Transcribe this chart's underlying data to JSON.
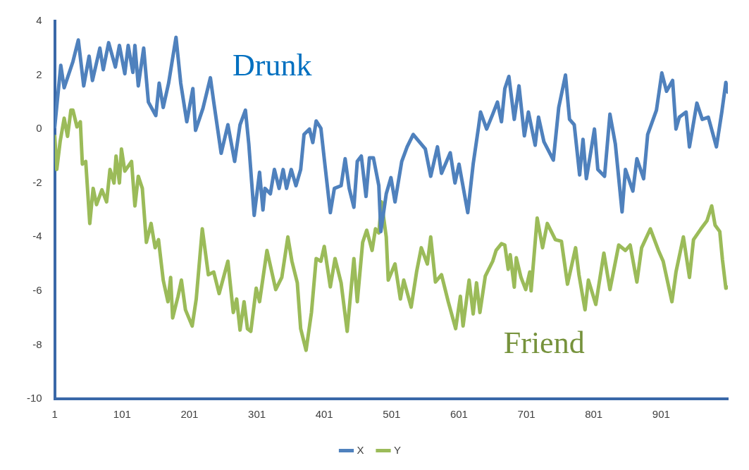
{
  "chart_data": {
    "type": "line",
    "xlim": [
      1,
      1000
    ],
    "xticks": [
      1,
      101,
      201,
      301,
      401,
      501,
      601,
      701,
      801,
      901
    ],
    "ylim": [
      -10,
      4
    ],
    "yticks": [
      -10,
      -8,
      -6,
      -4,
      -2,
      0,
      2,
      4
    ],
    "grid": false,
    "legend": "bottom",
    "marker": "none",
    "line_style": "solid",
    "annotations": [
      "Drunk",
      "Friend"
    ],
    "series": [
      {
        "name": "X",
        "color": "#4f81bd",
        "x": [
          1,
          10,
          15,
          28,
          36,
          44,
          52,
          57,
          68,
          73,
          81,
          91,
          97,
          105,
          110,
          117,
          120,
          125,
          133,
          140,
          151,
          156,
          162,
          170,
          181,
          188,
          197,
          206,
          210,
          221,
          232,
          237,
          248,
          258,
          268,
          276,
          284,
          289,
          297,
          305,
          310,
          313,
          321,
          327,
          334,
          340,
          345,
          352,
          359,
          366,
          371,
          379,
          384,
          389,
          396,
          401,
          410,
          416,
          426,
          432,
          438,
          445,
          450,
          456,
          463,
          468,
          474,
          482,
          485,
          493,
          500,
          506,
          516,
          524,
          533,
          542,
          551,
          559,
          569,
          575,
          588,
          595,
          601,
          614,
          622,
          630,
          633,
          642,
          651,
          658,
          664,
          669,
          675,
          683,
          690,
          698,
          704,
          714,
          719,
          727,
          741,
          749,
          759,
          765,
          772,
          780,
          785,
          790,
          796,
          802,
          807,
          817,
          825,
          833,
          843,
          848,
          859,
          865,
          875,
          881,
          894,
          902,
          909,
          918,
          923,
          928,
          938,
          943,
          954,
          962,
          971,
          983,
          991,
          997,
          1000
        ],
        "values": [
          0.08,
          2.36,
          1.53,
          2.5,
          3.3,
          1.6,
          2.7,
          1.8,
          3.0,
          2.2,
          3.2,
          2.3,
          3.1,
          2.05,
          3.1,
          2.1,
          3.1,
          1.6,
          3.0,
          1.0,
          0.5,
          1.7,
          0.8,
          1.7,
          3.4,
          1.7,
          0.27,
          1.5,
          -0.05,
          0.77,
          1.9,
          1.0,
          -0.9,
          0.16,
          -1.2,
          0.16,
          0.7,
          -0.55,
          -3.2,
          -1.6,
          -3.0,
          -2.2,
          -2.4,
          -1.5,
          -2.2,
          -1.5,
          -2.2,
          -1.5,
          -2.1,
          -1.5,
          -0.2,
          0,
          -0.5,
          0.3,
          0.03,
          -1.1,
          -3.1,
          -2.2,
          -2.1,
          -1.1,
          -2.2,
          -2.9,
          -1.2,
          -1.0,
          -2.5,
          -1.07,
          -1.07,
          -2.1,
          -3.8,
          -2.4,
          -1.8,
          -2.7,
          -1.2,
          -0.66,
          -0.2,
          -0.47,
          -0.74,
          -1.75,
          -0.66,
          -1.64,
          -0.88,
          -2.0,
          -1.3,
          -3.1,
          -1.3,
          0.08,
          0.63,
          0,
          0.55,
          1.0,
          0.27,
          1.5,
          1.95,
          0.36,
          1.6,
          -0.25,
          0.63,
          -0.6,
          0.44,
          -0.47,
          -1.15,
          0.8,
          2.0,
          0.36,
          0.16,
          -1.7,
          -0.38,
          -1.84,
          -0.93,
          0,
          -1.5,
          -1.75,
          0.55,
          -0.55,
          -3.07,
          -1.5,
          -2.3,
          -1.1,
          -1.84,
          -0.2,
          0.7,
          2.08,
          1.4,
          1.8,
          0,
          0.44,
          0.63,
          -0.66,
          0.96,
          0.36,
          0.44,
          -0.66,
          0.63,
          1.73,
          1.37
        ]
      },
      {
        "name": "Y",
        "color": "#9bbb59",
        "x": [
          1,
          4,
          9,
          15,
          20,
          25,
          28,
          34,
          39,
          42,
          47,
          53,
          58,
          63,
          71,
          78,
          83,
          89,
          92,
          97,
          100,
          105,
          115,
          120,
          125,
          131,
          137,
          144,
          150,
          155,
          162,
          169,
          173,
          176,
          184,
          189,
          195,
          205,
          211,
          220,
          229,
          237,
          245,
          258,
          266,
          271,
          276,
          282,
          287,
          292,
          300,
          305,
          316,
          329,
          338,
          347,
          353,
          361,
          366,
          374,
          382,
          389,
          396,
          401,
          410,
          417,
          426,
          435,
          445,
          450,
          458,
          464,
          472,
          477,
          482,
          486,
          493,
          496,
          506,
          514,
          519,
          530,
          538,
          545,
          554,
          559,
          566,
          575,
          585,
          596,
          603,
          607,
          616,
          622,
          627,
          632,
          640,
          651,
          656,
          664,
          669,
          674,
          677,
          683,
          686,
          693,
          700,
          706,
          708,
          717,
          725,
          732,
          744,
          753,
          762,
          774,
          779,
          788,
          793,
          804,
          816,
          825,
          838,
          848,
          855,
          865,
          872,
          885,
          897,
          904,
          917,
          923,
          934,
          943,
          949,
          960,
          969,
          976,
          981,
          988,
          992,
          997,
          1000
        ],
        "values": [
          -0.27,
          -1.5,
          -0.47,
          0.4,
          -0.27,
          0.7,
          0.7,
          0.08,
          0.27,
          -1.3,
          -1.2,
          -3.5,
          -2.2,
          -2.8,
          -2.25,
          -2.7,
          -1.5,
          -2.0,
          -1.0,
          -2.0,
          -0.74,
          -1.56,
          -1.2,
          -2.85,
          -1.75,
          -2.2,
          -4.2,
          -3.5,
          -4.4,
          -4.1,
          -5.6,
          -6.4,
          -5.5,
          -7.0,
          -6.2,
          -5.6,
          -6.7,
          -7.3,
          -6.3,
          -3.7,
          -5.4,
          -5.3,
          -6.1,
          -4.9,
          -6.8,
          -6.3,
          -7.45,
          -6.4,
          -7.4,
          -7.5,
          -5.9,
          -6.4,
          -4.5,
          -5.95,
          -5.5,
          -4.0,
          -4.9,
          -5.7,
          -7.4,
          -8.2,
          -6.8,
          -4.8,
          -4.9,
          -4.35,
          -5.85,
          -4.8,
          -5.7,
          -7.5,
          -4.8,
          -6.4,
          -4.2,
          -3.75,
          -4.5,
          -3.7,
          -3.85,
          -2.7,
          -4.0,
          -5.6,
          -5.0,
          -6.3,
          -5.6,
          -6.6,
          -5.3,
          -4.4,
          -5.0,
          -4.0,
          -5.67,
          -5.4,
          -6.4,
          -7.4,
          -6.2,
          -7.3,
          -5.6,
          -6.85,
          -5.7,
          -6.8,
          -5.45,
          -4.9,
          -4.5,
          -4.25,
          -4.3,
          -5.2,
          -4.66,
          -5.86,
          -4.77,
          -5.5,
          -5.95,
          -5.3,
          -6.0,
          -3.3,
          -4.4,
          -3.5,
          -4.1,
          -4.16,
          -5.75,
          -4.4,
          -5.4,
          -6.7,
          -5.6,
          -6.5,
          -4.6,
          -5.95,
          -4.3,
          -4.5,
          -4.3,
          -5.67,
          -4.4,
          -3.7,
          -4.5,
          -4.9,
          -6.4,
          -5.3,
          -4.0,
          -5.5,
          -4.1,
          -3.7,
          -3.4,
          -2.85,
          -3.56,
          -3.8,
          -4.85,
          -5.9,
          -5.86
        ]
      }
    ]
  }
}
